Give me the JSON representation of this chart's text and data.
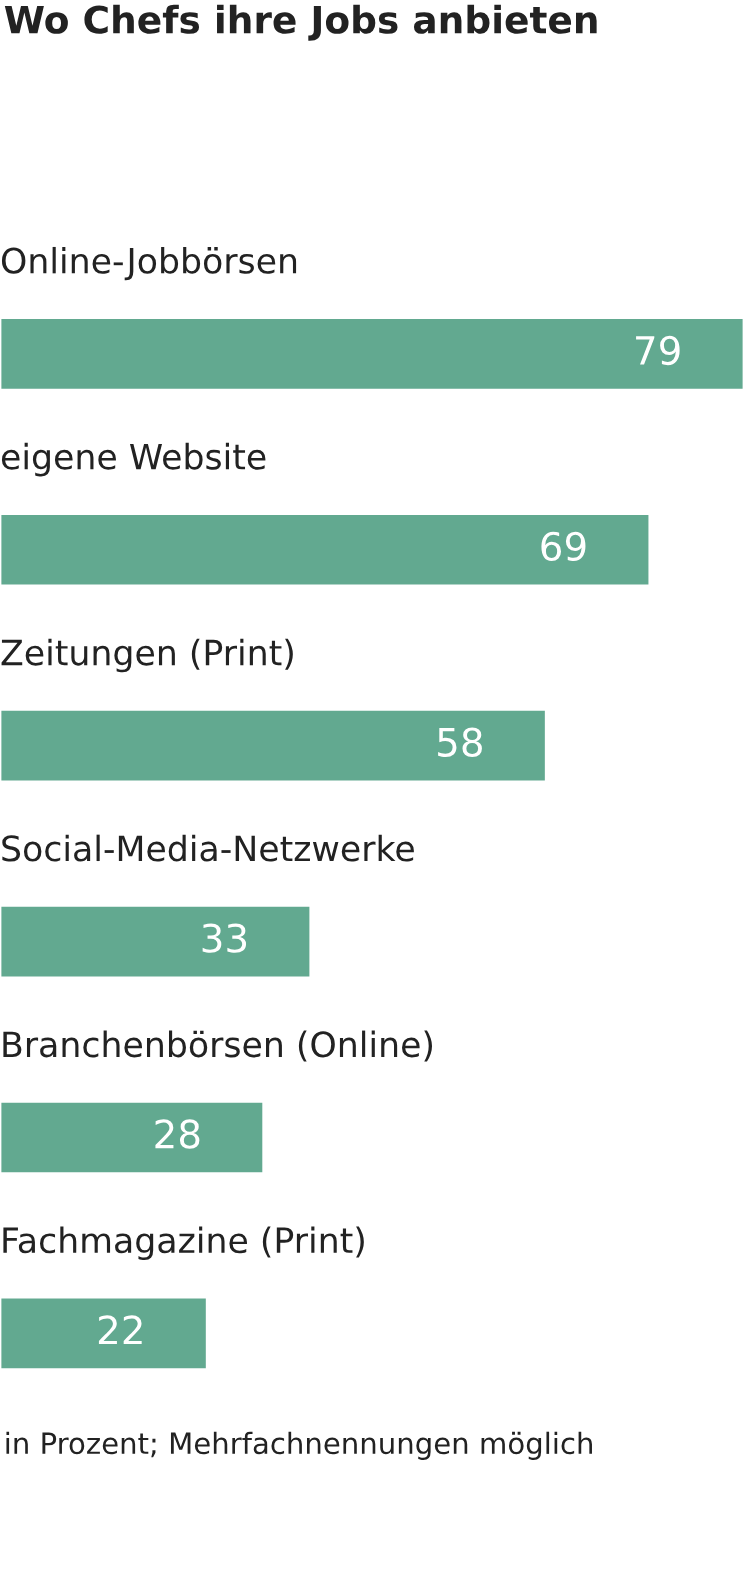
{
  "chart_data": {
    "type": "bar",
    "orientation": "horizontal",
    "title": "Wo Chefs ihre Jobs anbieten",
    "categories": [
      "Online-Jobbörsen",
      "eigene Website",
      "Zeitungen (Print)",
      "Social-Media-Netzwerke",
      "Branchenbörsen (Online)",
      "Fachmagazine (Print)"
    ],
    "values": [
      79,
      69,
      58,
      33,
      28,
      22
    ],
    "color": "#62a990",
    "data_labels": true,
    "annotations": [
      "in Prozent; Mehrfachnennungen möglich"
    ]
  }
}
